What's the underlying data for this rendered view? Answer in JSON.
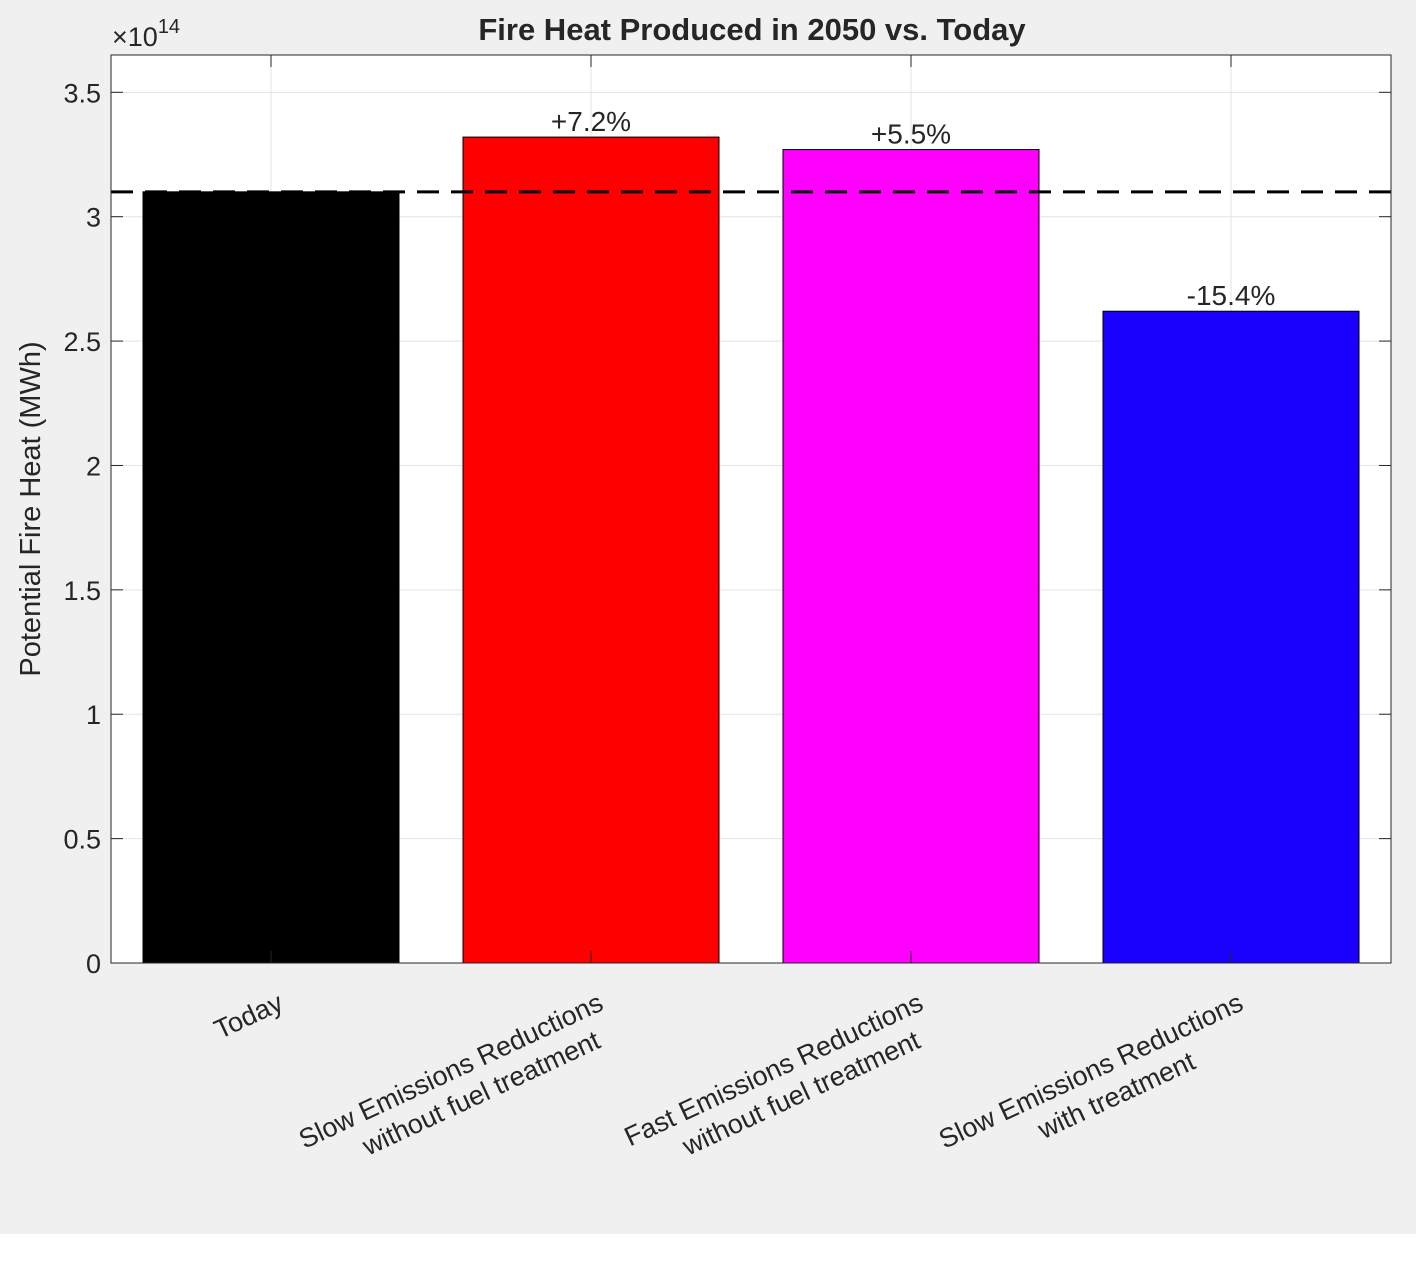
{
  "chart_data": {
    "type": "bar",
    "title": "Fire Heat Produced in 2050 vs. Today",
    "ylabel": "Potential Fire Heat (MWh)",
    "xlabel": "",
    "y_exponent_label": "×10",
    "y_exponent": "14",
    "ylim": [
      0,
      3.65
    ],
    "yticks": [
      0,
      0.5,
      1,
      1.5,
      2,
      2.5,
      3,
      3.5
    ],
    "ytick_labels": [
      "0",
      "0.5",
      "1",
      "1.5",
      "2",
      "2.5",
      "3",
      "3.5"
    ],
    "grid": true,
    "categories": [
      [
        "Today"
      ],
      [
        "Slow Emissions Reductions",
        "without fuel treatment"
      ],
      [
        "Fast Emissions Reductions",
        "without fuel treatment"
      ],
      [
        "Slow Emissions Reductions",
        "with treatment"
      ]
    ],
    "values": [
      3.1,
      3.32,
      3.27,
      2.62
    ],
    "value_scale": "1e14",
    "bar_colors": [
      "#000000",
      "#ff0000",
      "#ff00ff",
      "#1a00ff"
    ],
    "data_labels": [
      "",
      "+7.2%",
      "+5.5%",
      "-15.4%"
    ],
    "reference_line": {
      "y": 3.1,
      "style": "dashed",
      "color": "#000000"
    }
  }
}
